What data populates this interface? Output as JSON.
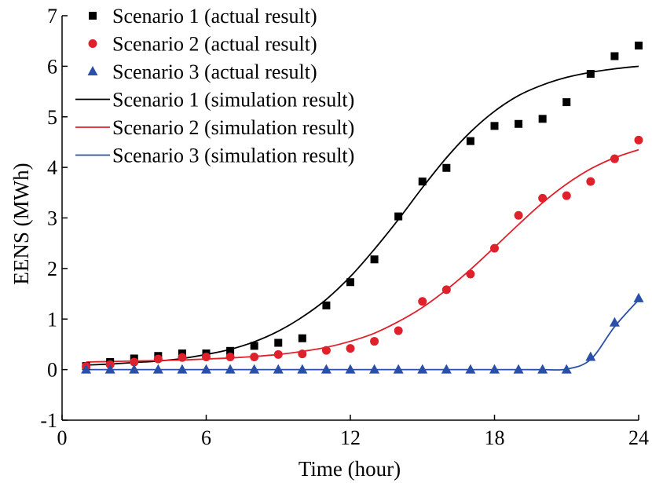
{
  "chart_data": {
    "type": "line",
    "title": "",
    "xlabel": "Time (hour)",
    "ylabel": "EENS (MWh)",
    "xlim": [
      0,
      24
    ],
    "ylim": [
      -1,
      7
    ],
    "x_ticks": [
      0,
      6,
      12,
      18,
      24
    ],
    "y_ticks": [
      -1,
      0,
      1,
      2,
      3,
      4,
      5,
      6,
      7
    ],
    "grid": false,
    "legend_position": "top-left",
    "x": [
      1,
      2,
      3,
      4,
      5,
      6,
      7,
      8,
      9,
      10,
      11,
      12,
      13,
      14,
      15,
      16,
      17,
      18,
      19,
      20,
      21,
      22,
      23,
      24
    ],
    "series": [
      {
        "name": "Scenario 1 (actual result)",
        "kind": "scatter",
        "marker": "square",
        "color": "#000000",
        "values": [
          0.07,
          0.15,
          0.22,
          0.27,
          0.32,
          0.32,
          0.37,
          0.47,
          0.53,
          0.62,
          1.27,
          1.73,
          2.18,
          3.03,
          3.72,
          3.99,
          4.52,
          4.82,
          4.86,
          4.96,
          5.29,
          5.85,
          6.2,
          6.41
        ]
      },
      {
        "name": "Scenario 2 (actual result)",
        "kind": "scatter",
        "marker": "circle",
        "color": "#e0202a",
        "values": [
          0.06,
          0.1,
          0.15,
          0.21,
          0.24,
          0.25,
          0.25,
          0.25,
          0.3,
          0.31,
          0.38,
          0.42,
          0.56,
          0.77,
          1.35,
          1.58,
          1.89,
          2.4,
          3.05,
          3.39,
          3.44,
          3.72,
          4.17,
          4.54
        ]
      },
      {
        "name": "Scenario 3 (actual result)",
        "kind": "scatter",
        "marker": "triangle",
        "color": "#2a4fa8",
        "values": [
          0,
          0,
          0,
          0,
          0,
          0,
          0,
          0,
          0,
          0,
          0,
          0,
          0,
          0,
          0,
          0,
          0,
          0,
          0,
          0,
          0,
          0.25,
          0.93,
          1.41
        ]
      },
      {
        "name": "Scenario 1 (simulation result)",
        "kind": "line",
        "color": "#000000",
        "values": [
          0.09,
          0.11,
          0.14,
          0.17,
          0.22,
          0.3,
          0.4,
          0.55,
          0.76,
          1.04,
          1.39,
          1.84,
          2.38,
          2.97,
          3.6,
          4.19,
          4.7,
          5.11,
          5.42,
          5.63,
          5.78,
          5.88,
          5.95,
          6.0
        ]
      },
      {
        "name": "Scenario 2 (simulation result)",
        "kind": "line",
        "color": "#e0202a",
        "values": [
          0.15,
          0.16,
          0.17,
          0.18,
          0.19,
          0.21,
          0.23,
          0.26,
          0.3,
          0.36,
          0.44,
          0.56,
          0.72,
          0.95,
          1.23,
          1.58,
          1.98,
          2.42,
          2.87,
          3.3,
          3.67,
          3.97,
          4.19,
          4.35
        ]
      },
      {
        "name": "Scenario 3 (simulation result)",
        "kind": "line",
        "color": "#2a4fa8",
        "values": [
          0,
          0,
          0,
          0,
          0,
          0,
          0,
          0,
          0,
          0,
          0,
          0,
          0,
          0,
          0,
          0,
          0,
          0,
          0,
          0,
          0.01,
          0.2,
          0.85,
          1.38
        ]
      }
    ]
  }
}
